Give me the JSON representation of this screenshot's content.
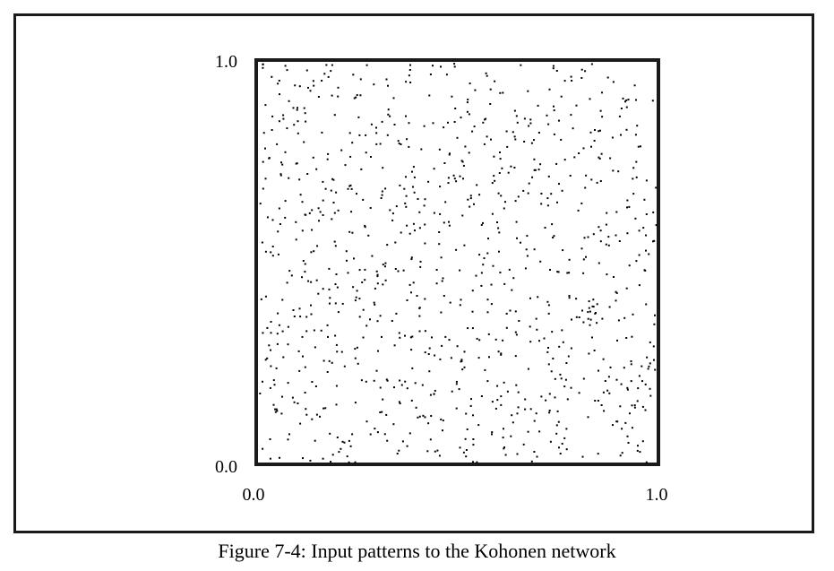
{
  "figure": {
    "caption": "Figure 7-4: Input patterns to the Kohonen network"
  },
  "chart_data": {
    "type": "scatter",
    "xlim": [
      0.0,
      1.0
    ],
    "ylim": [
      0.0,
      1.0
    ],
    "x_tick_labels": [
      "0.0",
      "1.0"
    ],
    "y_tick_labels": [
      "0.0",
      "1.0"
    ],
    "grid": false,
    "legend": "none",
    "point_color": "#000000",
    "distribution": "uniform random over unit square",
    "sample_count": 1000,
    "random_seed": 7
  }
}
